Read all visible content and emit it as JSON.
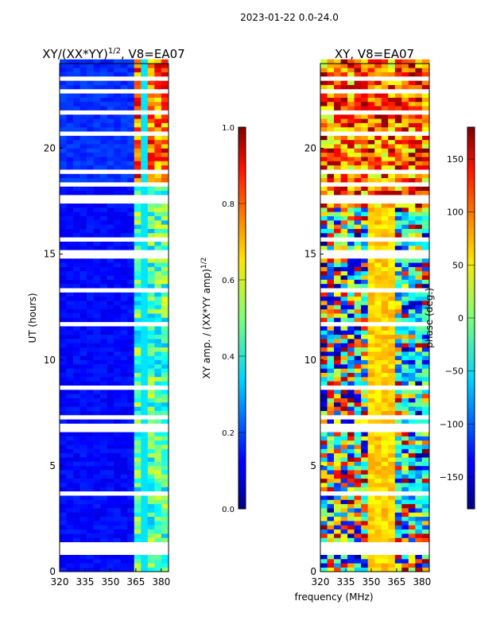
{
  "suptitle": "2023-01-22 0.0-24.0",
  "xlabel": "frequency (MHz)",
  "chart_data": [
    {
      "type": "heatmap",
      "title": "XY/(XX*YY)",
      "title_exp": "1/2",
      "title_suffix": ", V8=EA07",
      "xlabel": "frequency (MHz)",
      "ylabel": "UT (hours)",
      "xlim": [
        320,
        384.3
      ],
      "ylim": [
        0,
        24
      ],
      "xticks": [
        "320",
        "335",
        "350",
        "365",
        "380"
      ],
      "xtick_values": [
        320,
        335,
        350,
        365,
        380
      ],
      "yticks": [
        "0",
        "5",
        "10",
        "15",
        "20"
      ],
      "ytick_values": [
        0,
        5,
        10,
        15,
        20
      ],
      "colormap": "jet",
      "colorbar": {
        "label": "XY amp. / (XX*YY amp)",
        "label_exp": "1/2",
        "range": [
          0,
          1
        ],
        "ticks": [
          "0.0",
          "0.2",
          "0.4",
          "0.6",
          "0.8",
          "1.0"
        ],
        "tick_values": [
          0,
          0.2,
          0.4,
          0.6,
          0.8,
          1.0
        ]
      },
      "description_values": {
        "below_362MHz": 0.1,
        "above_362MHz_ut_gt_18": 0.85,
        "above_362MHz_ut_lt_18": 0.45
      }
    },
    {
      "type": "heatmap",
      "title": "XY, V8=EA07",
      "xlabel": "frequency (MHz)",
      "ylabel": "",
      "xlim": [
        320,
        384.3
      ],
      "ylim": [
        0,
        24
      ],
      "xticks": [
        "320",
        "335",
        "350",
        "365",
        "380"
      ],
      "xtick_values": [
        320,
        335,
        350,
        365,
        380
      ],
      "yticks": [
        "0",
        "5",
        "10",
        "15",
        "20"
      ],
      "ytick_values": [
        0,
        5,
        10,
        15,
        20
      ],
      "colormap": "jet",
      "colorbar": {
        "label": "phase (deg.)",
        "range": [
          -180,
          180
        ],
        "ticks": [
          "−150",
          "−100",
          "−50",
          "0",
          "50",
          "100",
          "150"
        ],
        "tick_values": [
          -150,
          -100,
          -50,
          0,
          50,
          100,
          150
        ]
      }
    }
  ],
  "flagged_rows_ut": [
    0.8,
    1.0,
    1.2,
    3.6,
    6.6,
    6.8,
    7.2,
    8.6,
    11.6,
    13.2,
    14.8,
    15.0,
    15.6,
    17.4,
    17.6,
    18.2,
    18.8,
    20.6,
    21.6,
    22.6,
    23.2
  ]
}
